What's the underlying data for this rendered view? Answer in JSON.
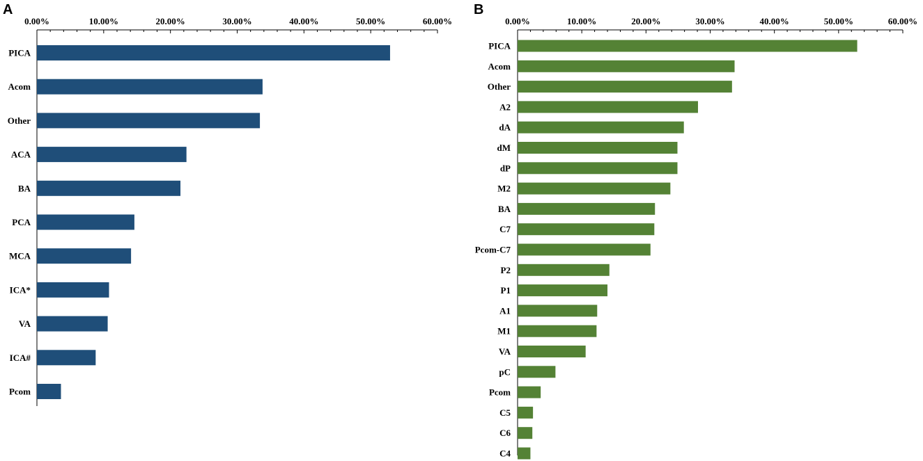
{
  "chart_data": [
    {
      "type": "bar",
      "orientation": "horizontal",
      "panel": "A",
      "color": "#1f4e79",
      "x_axis_position": "top",
      "xlim": [
        0,
        60
      ],
      "tick_values": [
        0,
        10,
        20,
        30,
        40,
        50,
        60
      ],
      "tick_labels": [
        "0.00%",
        "10.00%",
        "20.00%",
        "30.00%",
        "40.00%",
        "50.00%",
        "60.00%"
      ],
      "categories": [
        "PICA",
        "Acom",
        "Other",
        "ACA",
        "BA",
        "PCA",
        "MCA",
        "ICA*",
        "VA",
        "ICA#",
        "Pcom"
      ],
      "values": [
        52.9,
        33.8,
        33.4,
        22.4,
        21.5,
        14.6,
        14.1,
        10.8,
        10.6,
        8.8,
        3.6
      ]
    },
    {
      "type": "bar",
      "orientation": "horizontal",
      "panel": "B",
      "color": "#548235",
      "x_axis_position": "top",
      "xlim": [
        0,
        60
      ],
      "tick_values": [
        0,
        10,
        20,
        30,
        40,
        50,
        60
      ],
      "tick_labels": [
        "0.00%",
        "10.00%",
        "20.00%",
        "30.00%",
        "40.00%",
        "50.00%",
        "60.00%"
      ],
      "categories": [
        "PICA",
        "Acom",
        "Other",
        "A2",
        "dA",
        "dM",
        "dP",
        "M2",
        "BA",
        "C7",
        "Pcom-C7",
        "P2",
        "P1",
        "A1",
        "M1",
        "VA",
        "pC",
        "Pcom",
        "C5",
        "C6",
        "C4"
      ],
      "values": [
        52.9,
        33.8,
        33.4,
        28.1,
        25.9,
        24.9,
        24.9,
        23.8,
        21.4,
        21.3,
        20.7,
        14.3,
        14.0,
        12.4,
        12.3,
        10.6,
        5.9,
        3.6,
        2.4,
        2.3,
        2.0
      ]
    }
  ]
}
